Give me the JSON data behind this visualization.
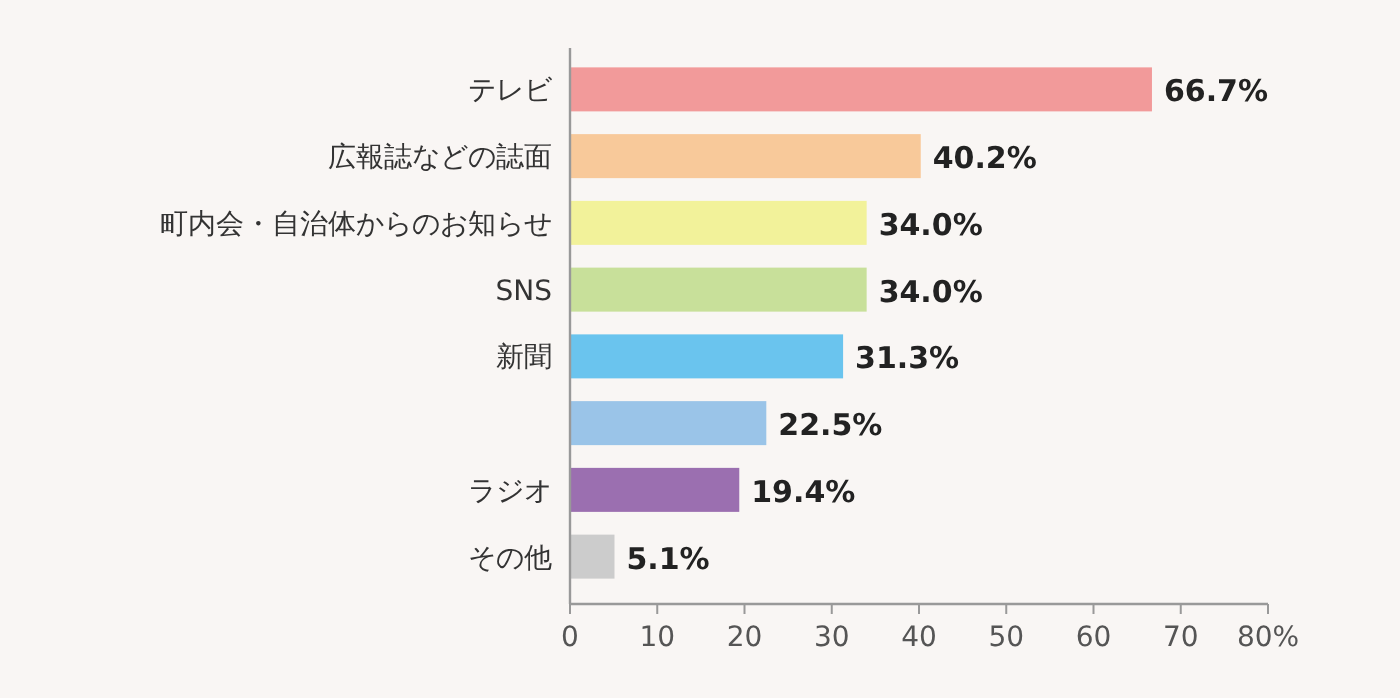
{
  "chart_data": {
    "type": "bar",
    "orientation": "horizontal",
    "categories": [
      "テレビ",
      "広報誌などの誌面",
      "町内会・自治体からのお知らせ",
      "SNS",
      "新聞",
      null,
      "ラジオ",
      "その他"
    ],
    "values": [
      66.7,
      40.2,
      34.0,
      34.0,
      31.3,
      22.5,
      19.4,
      5.1
    ],
    "colors": [
      "#f29a9a",
      "#f8c99a",
      "#f2f29a",
      "#c8e09a",
      "#6ac4ee",
      "#9ac4e8",
      "#9b6fb0",
      "#cccccc"
    ],
    "value_labels": [
      "66.7%",
      "40.2%",
      "34.0%",
      "34.0%",
      "31.3%",
      "22.5%",
      "19.4%",
      "5.1%"
    ],
    "xlim": [
      0,
      80
    ],
    "xticks": [
      0,
      10,
      20,
      30,
      40,
      50,
      60,
      70,
      {
        "value": 80,
        "label": "80%"
      }
    ],
    "grid": false
  }
}
